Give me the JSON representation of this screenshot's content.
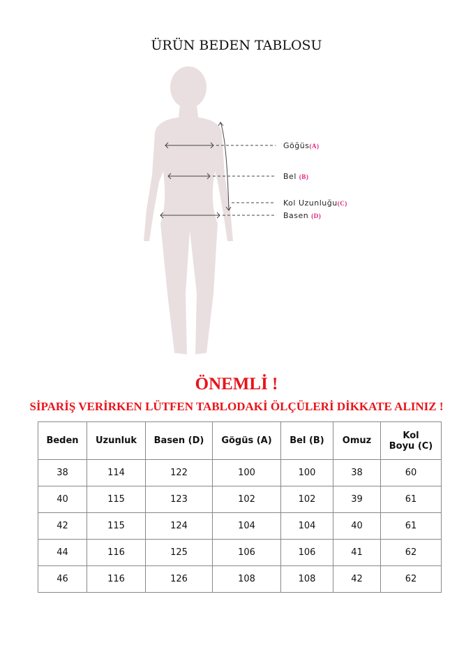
{
  "title": "ÜRÜN BEDEN TABLOSU",
  "figure": {
    "labels": [
      {
        "name": "Göğüs",
        "code": "(A)"
      },
      {
        "name": "Bel",
        "code": "(B)"
      },
      {
        "name": "Kol Uzunluğu",
        "code": "(C)"
      },
      {
        "name": "Basen",
        "code": "(D)"
      }
    ],
    "silhouette_color": "#e9dfe0",
    "code_color": "#e0207a"
  },
  "notice": {
    "heading": "ÖNEMLİ !",
    "text": "SİPARİŞ VERİRKEN LÜTFEN TABLODAKİ ÖLÇÜLERİ DİKKATE ALINIZ !",
    "color": "#e8141a"
  },
  "table": {
    "headers": [
      "Beden",
      "Uzunluk",
      "Basen (D)",
      "Gögüs (A)",
      "Bel (B)",
      "Omuz",
      "Kol\nBoyu (C)"
    ],
    "rows": [
      [
        "38",
        "114",
        "122",
        "100",
        "100",
        "38",
        "60"
      ],
      [
        "40",
        "115",
        "123",
        "102",
        "102",
        "39",
        "61"
      ],
      [
        "42",
        "115",
        "124",
        "104",
        "104",
        "40",
        "61"
      ],
      [
        "44",
        "116",
        "125",
        "106",
        "106",
        "41",
        "62"
      ],
      [
        "46",
        "116",
        "126",
        "108",
        "108",
        "42",
        "62"
      ]
    ]
  }
}
